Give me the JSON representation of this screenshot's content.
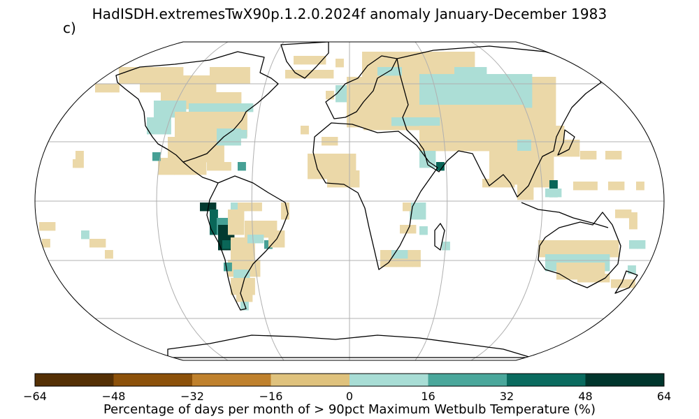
{
  "title": "HadISDH.extremesTwX90p.1.2.0.2024f anomaly January-December 1983",
  "panel_label": "c)",
  "colorbar": {
    "label": "Percentage of days per month of > 90pct Maximum Wetbulb Temperature (%)",
    "ticks": [
      "−64",
      "−48",
      "−32",
      "−16",
      "0",
      "16",
      "32",
      "48",
      "64"
    ],
    "bins": [
      {
        "range": "-64 to -48",
        "color": "#543005"
      },
      {
        "range": "-48 to -32",
        "color": "#8c510a"
      },
      {
        "range": "-32 to -16",
        "color": "#bf812d"
      },
      {
        "range": "-16 to 0",
        "color": "#dfc27d"
      },
      {
        "range": "0 to 16",
        "color": "#a8ddd5"
      },
      {
        "range": "16 to 32",
        "color": "#4aa79b"
      },
      {
        "range": "32 to 48",
        "color": "#0a6b5f"
      },
      {
        "range": "48 to 64",
        "color": "#01362d"
      }
    ]
  },
  "colors": {
    "weak_negative": "#ebd8a8",
    "weak_positive": "#acded6",
    "mid_positive": "#46a095",
    "strong_positive": "#0a6658",
    "extreme_positive": "#023a30",
    "coast": "#000000",
    "grid": "#b0b0b0"
  },
  "map": {
    "projection": "Robinson",
    "gridlines": true
  }
}
